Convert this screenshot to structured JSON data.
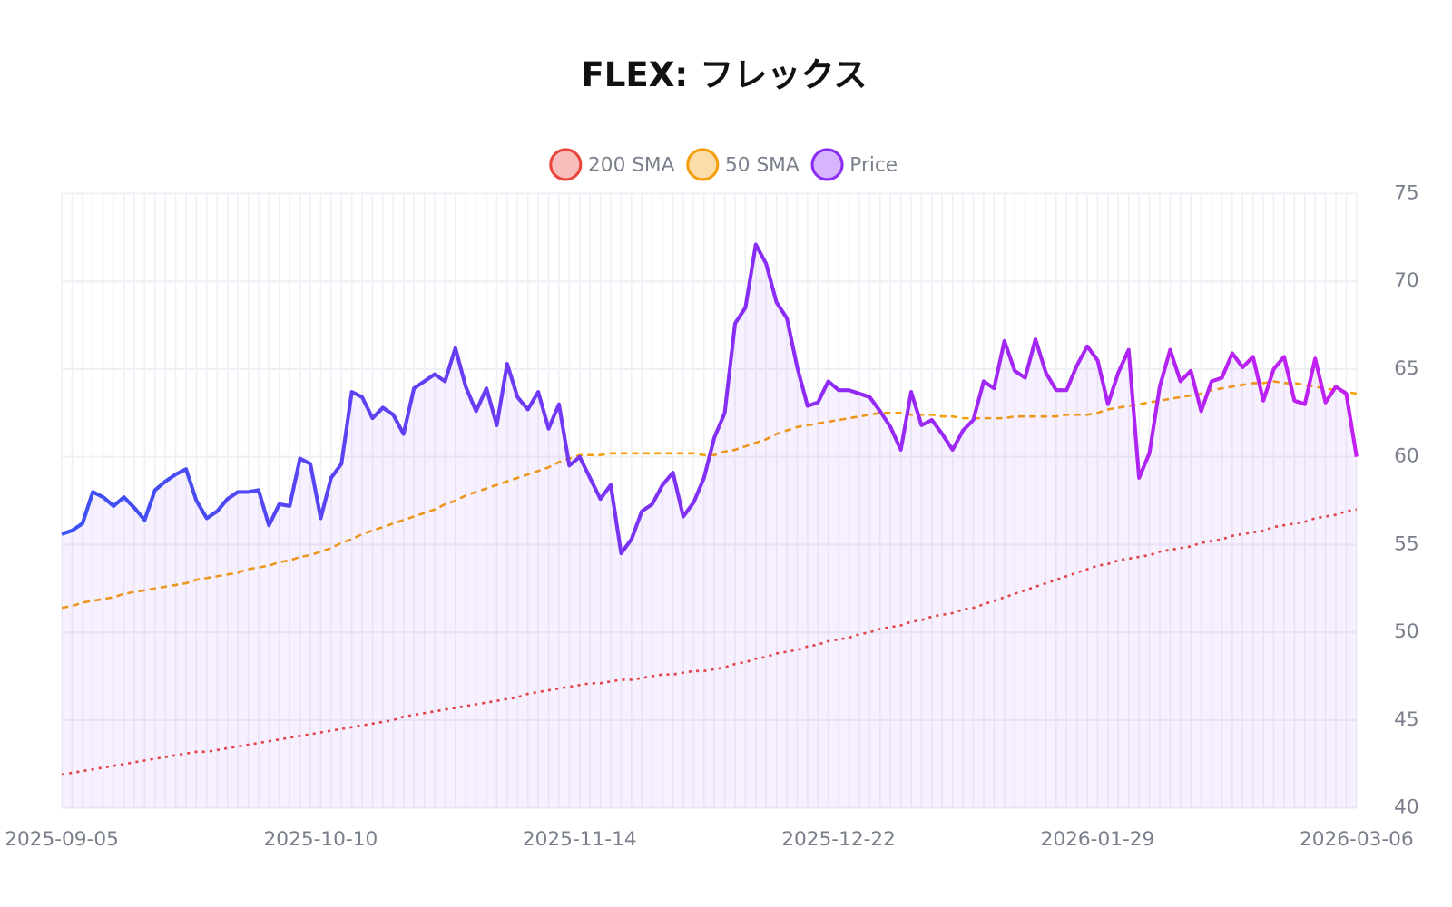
{
  "chart_data": {
    "type": "line",
    "title": "FLEX: フレックス",
    "categories": [
      "2025-09-05",
      null,
      null,
      null,
      null,
      null,
      null,
      null,
      null,
      null,
      null,
      null,
      null,
      null,
      null,
      null,
      null,
      null,
      null,
      null,
      null,
      null,
      null,
      null,
      null,
      "2025-10-10",
      null,
      null,
      null,
      null,
      null,
      null,
      null,
      null,
      null,
      null,
      null,
      null,
      null,
      null,
      null,
      null,
      null,
      null,
      null,
      null,
      null,
      null,
      null,
      null,
      "2025-11-14",
      null,
      null,
      null,
      null,
      null,
      null,
      null,
      null,
      null,
      null,
      null,
      null,
      null,
      null,
      null,
      null,
      null,
      null,
      null,
      null,
      null,
      null,
      null,
      null,
      "2025-12-22",
      null,
      null,
      null,
      null,
      null,
      null,
      null,
      null,
      null,
      null,
      null,
      null,
      null,
      null,
      null,
      null,
      null,
      null,
      null,
      null,
      null,
      null,
      null,
      null,
      "2026-01-29",
      null,
      null,
      null,
      null,
      null,
      null,
      null,
      null,
      null,
      null,
      null,
      null,
      null,
      null,
      null,
      null,
      null,
      null,
      null,
      null,
      null,
      null,
      null,
      null,
      "2026-03-06"
    ],
    "series": [
      {
        "name": "200 SMA",
        "color": "#e8453c",
        "dash": "dotted",
        "values": [
          41.9,
          42.0,
          42.1,
          42.2,
          42.3,
          42.4,
          42.5,
          42.6,
          42.7,
          42.8,
          42.9,
          43.0,
          43.1,
          43.2,
          43.2,
          43.3,
          43.4,
          43.5,
          43.6,
          43.7,
          43.8,
          43.9,
          44.0,
          44.1,
          44.2,
          44.3,
          44.4,
          44.5,
          44.6,
          44.7,
          44.8,
          44.9,
          45.0,
          45.2,
          45.3,
          45.4,
          45.5,
          45.6,
          45.7,
          45.8,
          45.9,
          46.0,
          46.1,
          46.2,
          46.3,
          46.5,
          46.6,
          46.7,
          46.8,
          46.9,
          47.0,
          47.1,
          47.1,
          47.2,
          47.3,
          47.3,
          47.4,
          47.5,
          47.6,
          47.6,
          47.7,
          47.8,
          47.8,
          47.9,
          48.0,
          48.2,
          48.3,
          48.5,
          48.6,
          48.8,
          48.9,
          49.0,
          49.2,
          49.3,
          49.5,
          49.6,
          49.7,
          49.9,
          50.0,
          50.2,
          50.3,
          50.4,
          50.6,
          50.7,
          50.9,
          51.0,
          51.1,
          51.3,
          51.4,
          51.6,
          51.8,
          52.0,
          52.2,
          52.4,
          52.6,
          52.8,
          53.0,
          53.2,
          53.4,
          53.6,
          53.8,
          53.9,
          54.1,
          54.2,
          54.3,
          54.4,
          54.6,
          54.7,
          54.8,
          54.9,
          55.1,
          55.2,
          55.3,
          55.5,
          55.6,
          55.7,
          55.8,
          56.0,
          56.1,
          56.2,
          56.3,
          56.5,
          56.6,
          56.7,
          56.9,
          57.0
        ]
      },
      {
        "name": "50 SMA",
        "color": "#f59e0b",
        "dash": "dashed",
        "values": [
          51.4,
          51.5,
          51.7,
          51.8,
          51.9,
          52.0,
          52.2,
          52.3,
          52.4,
          52.5,
          52.6,
          52.7,
          52.8,
          53.0,
          53.1,
          53.2,
          53.3,
          53.4,
          53.6,
          53.7,
          53.8,
          54.0,
          54.1,
          54.3,
          54.4,
          54.6,
          54.8,
          55.1,
          55.3,
          55.6,
          55.8,
          56.0,
          56.2,
          56.4,
          56.6,
          56.8,
          57.0,
          57.3,
          57.5,
          57.8,
          58.0,
          58.2,
          58.4,
          58.6,
          58.8,
          59.0,
          59.2,
          59.4,
          59.7,
          59.9,
          60.1,
          60.1,
          60.1,
          60.2,
          60.2,
          60.2,
          60.2,
          60.2,
          60.2,
          60.2,
          60.2,
          60.2,
          60.1,
          60.1,
          60.3,
          60.4,
          60.6,
          60.8,
          61.0,
          61.3,
          61.5,
          61.7,
          61.8,
          61.9,
          62.0,
          62.1,
          62.2,
          62.3,
          62.4,
          62.5,
          62.5,
          62.5,
          62.4,
          62.4,
          62.4,
          62.3,
          62.3,
          62.2,
          62.2,
          62.2,
          62.2,
          62.2,
          62.3,
          62.3,
          62.3,
          62.3,
          62.3,
          62.4,
          62.4,
          62.4,
          62.5,
          62.7,
          62.8,
          62.9,
          63.0,
          63.1,
          63.2,
          63.3,
          63.4,
          63.5,
          63.6,
          63.8,
          63.9,
          64.0,
          64.1,
          64.2,
          64.2,
          64.3,
          64.2,
          64.2,
          64.1,
          64.0,
          63.9,
          63.8,
          63.7,
          63.6
        ]
      },
      {
        "name": "Price",
        "color": "#8b2cf5",
        "dash": "solid",
        "area": true,
        "values": [
          55.6,
          55.8,
          56.2,
          58.0,
          57.7,
          57.2,
          57.7,
          57.1,
          56.4,
          58.1,
          58.6,
          59.0,
          59.3,
          57.5,
          56.5,
          56.9,
          57.6,
          58.0,
          58.0,
          58.1,
          56.1,
          57.3,
          57.2,
          59.9,
          59.6,
          56.5,
          58.8,
          59.6,
          63.7,
          63.4,
          62.2,
          62.8,
          62.4,
          61.3,
          63.9,
          64.3,
          64.7,
          64.3,
          66.2,
          64.0,
          62.6,
          63.9,
          61.8,
          65.3,
          63.4,
          62.7,
          63.7,
          61.6,
          63.0,
          59.5,
          60.0,
          58.8,
          57.6,
          58.4,
          54.5,
          55.3,
          56.9,
          57.3,
          58.4,
          59.1,
          56.6,
          57.4,
          58.8,
          61.1,
          62.5,
          67.6,
          68.5,
          72.1,
          71.0,
          68.8,
          67.9,
          65.1,
          62.9,
          63.1,
          64.3,
          63.8,
          63.8,
          63.6,
          63.4,
          62.6,
          61.7,
          60.4,
          63.7,
          61.8,
          62.1,
          61.3,
          60.4,
          61.5,
          62.1,
          64.3,
          63.9,
          66.6,
          64.9,
          64.5,
          66.7,
          64.8,
          63.8,
          63.8,
          65.2,
          66.3,
          65.5,
          63.0,
          64.8,
          66.1,
          58.8,
          60.2,
          64.0,
          66.1,
          64.3,
          64.9,
          62.6,
          64.3,
          64.5,
          65.9,
          65.1,
          65.7,
          63.2,
          65.0,
          65.7,
          63.2,
          63.0,
          65.6,
          63.1,
          64.0,
          63.6,
          60.0
        ]
      }
    ],
    "ylim": [
      40,
      75
    ],
    "yticks": [
      40,
      45,
      50,
      55,
      60,
      65,
      70,
      75
    ],
    "grid": true,
    "legend": "top"
  }
}
